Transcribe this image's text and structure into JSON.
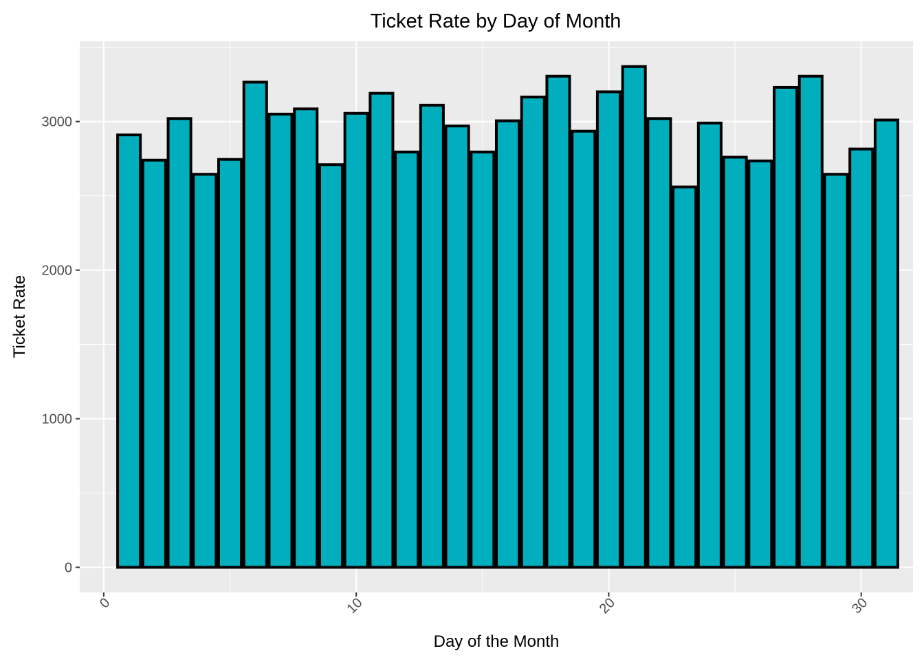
{
  "chart_data": {
    "type": "bar",
    "title": "Ticket Rate by Day of Month",
    "xlabel": "Day of the Month",
    "ylabel": "Ticket Rate",
    "x": [
      1,
      2,
      3,
      4,
      5,
      6,
      7,
      8,
      9,
      10,
      11,
      12,
      13,
      14,
      15,
      16,
      17,
      18,
      19,
      20,
      21,
      22,
      23,
      24,
      25,
      26,
      27,
      28,
      29,
      30,
      31
    ],
    "values": [
      2910,
      2740,
      3020,
      2645,
      2745,
      3265,
      3050,
      3085,
      2710,
      3055,
      3190,
      2795,
      3110,
      2970,
      2795,
      3005,
      3165,
      3305,
      2935,
      3200,
      3370,
      3020,
      2560,
      2990,
      2760,
      2735,
      3230,
      3305,
      2645,
      2815,
      3010
    ],
    "xticks": [
      0,
      10,
      20,
      30
    ],
    "yticks": [
      0,
      1000,
      2000,
      3000
    ],
    "xlim": [
      -0.95,
      32.05
    ],
    "ylim": [
      -169,
      3540
    ],
    "grid": true,
    "colors": {
      "fill": "#00AEBD",
      "outline": "#000000",
      "panel": "#EBEBEB",
      "grid": "#FFFFFF",
      "tick_text": "#4D4D4D"
    }
  }
}
